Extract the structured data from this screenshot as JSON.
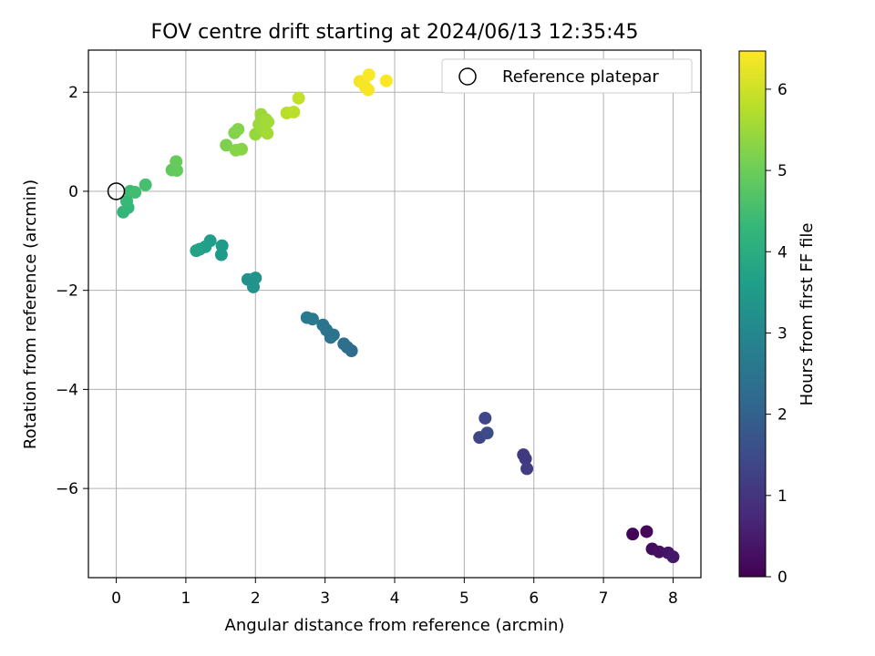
{
  "chart_data": {
    "type": "scatter",
    "title": "FOV centre drift starting at 2024/06/13 12:35:45",
    "xlabel": "Angular distance from reference (arcmin)",
    "ylabel": "Rotation from reference (arcmin)",
    "xlim": [
      -0.4,
      8.4
    ],
    "ylim": [
      -7.8,
      2.85
    ],
    "xticks": [
      0,
      1,
      2,
      3,
      4,
      5,
      6,
      7,
      8
    ],
    "xtick_labels": [
      "0",
      "1",
      "2",
      "3",
      "4",
      "5",
      "6",
      "7",
      "8"
    ],
    "yticks": [
      2,
      0,
      -2,
      -4,
      -6
    ],
    "ytick_labels": [
      "2",
      "0",
      "−2",
      "−4",
      "−6"
    ],
    "grid": true,
    "legend": {
      "position": "top-right",
      "entries": [
        "Reference platepar"
      ]
    },
    "reference_point": {
      "x": 0,
      "y": 0
    },
    "colorbar": {
      "label": "Hours from first FF file",
      "colormap": "viridis",
      "range": [
        0,
        6.47
      ],
      "ticks": [
        0,
        1,
        2,
        3,
        4,
        5,
        6
      ],
      "tick_labels": [
        "0",
        "1",
        "2",
        "3",
        "4",
        "5",
        "6"
      ],
      "colors": [
        "#440154",
        "#482878",
        "#3e4989",
        "#31688e",
        "#26828e",
        "#1f9e89",
        "#35b779",
        "#6ece58",
        "#b5de2b",
        "#fde725"
      ]
    },
    "points": [
      {
        "x": 7.42,
        "y": -6.92,
        "t": 0.05
      },
      {
        "x": 7.62,
        "y": -6.87,
        "t": 0.12
      },
      {
        "x": 7.7,
        "y": -7.22,
        "t": 0.2
      },
      {
        "x": 7.8,
        "y": -7.28,
        "t": 0.28
      },
      {
        "x": 7.93,
        "y": -7.3,
        "t": 0.35
      },
      {
        "x": 8.0,
        "y": -7.38,
        "t": 0.42
      },
      {
        "x": 5.85,
        "y": -5.32,
        "t": 1.05
      },
      {
        "x": 5.88,
        "y": -5.4,
        "t": 1.12
      },
      {
        "x": 5.9,
        "y": -5.6,
        "t": 1.18
      },
      {
        "x": 5.22,
        "y": -4.97,
        "t": 1.35
      },
      {
        "x": 5.3,
        "y": -4.58,
        "t": 1.42
      },
      {
        "x": 5.33,
        "y": -4.88,
        "t": 1.48
      },
      {
        "x": 3.38,
        "y": -3.22,
        "t": 2.25
      },
      {
        "x": 3.32,
        "y": -3.15,
        "t": 2.3
      },
      {
        "x": 3.27,
        "y": -3.08,
        "t": 2.35
      },
      {
        "x": 3.12,
        "y": -2.9,
        "t": 2.42
      },
      {
        "x": 3.08,
        "y": -2.95,
        "t": 2.45
      },
      {
        "x": 3.02,
        "y": -2.8,
        "t": 2.5
      },
      {
        "x": 2.97,
        "y": -2.7,
        "t": 2.55
      },
      {
        "x": 2.82,
        "y": -2.58,
        "t": 2.62
      },
      {
        "x": 2.74,
        "y": -2.55,
        "t": 2.66
      },
      {
        "x": 1.89,
        "y": -1.78,
        "t": 3.25
      },
      {
        "x": 1.97,
        "y": -1.93,
        "t": 3.3
      },
      {
        "x": 2.0,
        "y": -1.75,
        "t": 3.33
      },
      {
        "x": 1.52,
        "y": -1.1,
        "t": 3.52
      },
      {
        "x": 1.51,
        "y": -1.28,
        "t": 3.55
      },
      {
        "x": 1.35,
        "y": -1.0,
        "t": 3.6
      },
      {
        "x": 1.28,
        "y": -1.12,
        "t": 3.64
      },
      {
        "x": 1.2,
        "y": -1.17,
        "t": 3.68
      },
      {
        "x": 1.15,
        "y": -1.2,
        "t": 3.71
      },
      {
        "x": 0.1,
        "y": -0.42,
        "t": 4.25
      },
      {
        "x": 0.17,
        "y": -0.33,
        "t": 4.3
      },
      {
        "x": 0.15,
        "y": -0.2,
        "t": 4.35
      },
      {
        "x": 0.2,
        "y": 0.0,
        "t": 4.42
      },
      {
        "x": 0.27,
        "y": -0.02,
        "t": 4.48
      },
      {
        "x": 0.42,
        "y": 0.13,
        "t": 4.55
      },
      {
        "x": 0.8,
        "y": 0.43,
        "t": 4.85
      },
      {
        "x": 0.87,
        "y": 0.42,
        "t": 4.9
      },
      {
        "x": 0.86,
        "y": 0.6,
        "t": 4.95
      },
      {
        "x": 1.58,
        "y": 0.93,
        "t": 5.18
      },
      {
        "x": 1.7,
        "y": 1.18,
        "t": 5.22
      },
      {
        "x": 1.75,
        "y": 1.25,
        "t": 5.25
      },
      {
        "x": 1.72,
        "y": 0.83,
        "t": 5.28
      },
      {
        "x": 1.8,
        "y": 0.85,
        "t": 5.3
      },
      {
        "x": 2.0,
        "y": 1.15,
        "t": 5.45
      },
      {
        "x": 2.05,
        "y": 1.35,
        "t": 5.48
      },
      {
        "x": 2.08,
        "y": 1.55,
        "t": 5.5
      },
      {
        "x": 2.12,
        "y": 1.25,
        "t": 5.52
      },
      {
        "x": 2.15,
        "y": 1.45,
        "t": 5.54
      },
      {
        "x": 2.18,
        "y": 1.4,
        "t": 5.56
      },
      {
        "x": 2.17,
        "y": 1.17,
        "t": 5.58
      },
      {
        "x": 2.45,
        "y": 1.58,
        "t": 5.78
      },
      {
        "x": 2.55,
        "y": 1.6,
        "t": 5.82
      },
      {
        "x": 2.62,
        "y": 1.88,
        "t": 5.88
      },
      {
        "x": 3.5,
        "y": 2.22,
        "t": 6.35
      },
      {
        "x": 3.55,
        "y": 2.18,
        "t": 6.38
      },
      {
        "x": 3.58,
        "y": 2.1,
        "t": 6.4
      },
      {
        "x": 3.62,
        "y": 2.05,
        "t": 6.42
      },
      {
        "x": 3.63,
        "y": 2.35,
        "t": 6.44
      },
      {
        "x": 3.88,
        "y": 2.23,
        "t": 6.46
      }
    ]
  }
}
